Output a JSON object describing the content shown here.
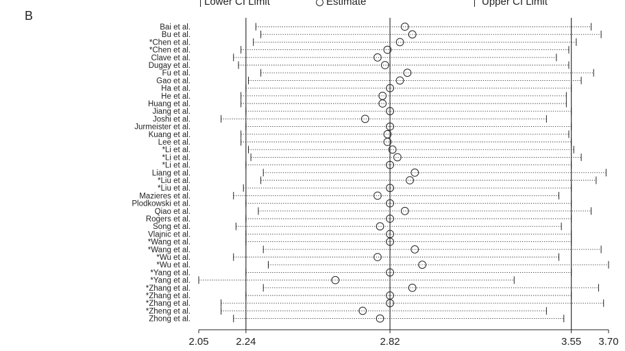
{
  "panel_letter": "B",
  "legend": {
    "lower": "Lower CI Limit",
    "estimate": "Estimate",
    "upper": "Upper CI Limit"
  },
  "colors": {
    "ink": "#222222",
    "ref_line": "#333333"
  },
  "chart_data": {
    "type": "forest",
    "x_range": [
      2.05,
      3.7
    ],
    "x_ticks": [
      2.05,
      2.24,
      2.82,
      3.55,
      3.7
    ],
    "x_tick_labels": [
      "2.05",
      "2.24",
      "2.82",
      "3.55",
      "3.70"
    ],
    "reference_lines": [
      2.24,
      2.82,
      3.55
    ],
    "studies": [
      {
        "label": "Bai et al.",
        "lower": 2.28,
        "estimate": 2.88,
        "upper": 3.63
      },
      {
        "label": "Bu et al.",
        "lower": 2.3,
        "estimate": 2.91,
        "upper": 3.67
      },
      {
        "label": "*Chen et al.",
        "lower": 2.27,
        "estimate": 2.86,
        "upper": 3.57
      },
      {
        "label": "*Chen et al.",
        "lower": 2.22,
        "estimate": 2.81,
        "upper": 3.54
      },
      {
        "label": "Clave et al.",
        "lower": 2.19,
        "estimate": 2.77,
        "upper": 3.49
      },
      {
        "label": "Dugay et al.",
        "lower": 2.21,
        "estimate": 2.8,
        "upper": 3.54
      },
      {
        "label": "Fu et al.",
        "lower": 2.3,
        "estimate": 2.89,
        "upper": 3.64
      },
      {
        "label": "Gao et al.",
        "lower": 2.25,
        "estimate": 2.86,
        "upper": 3.59
      },
      {
        "label": "Ha et al.",
        "lower": 2.24,
        "estimate": 2.82,
        "upper": 3.55
      },
      {
        "label": "He et al.",
        "lower": 2.22,
        "estimate": 2.79,
        "upper": 3.53
      },
      {
        "label": "Huang et al.",
        "lower": 2.22,
        "estimate": 2.79,
        "upper": 3.53
      },
      {
        "label": "Jiang et al.",
        "lower": 2.24,
        "estimate": 2.82,
        "upper": 3.55
      },
      {
        "label": "Joshi et al.",
        "lower": 2.14,
        "estimate": 2.72,
        "upper": 3.45
      },
      {
        "label": "Jurmeister et al.",
        "lower": 2.24,
        "estimate": 2.82,
        "upper": 3.55
      },
      {
        "label": "Kuang et al.",
        "lower": 2.22,
        "estimate": 2.81,
        "upper": 3.54
      },
      {
        "label": "Lee et al.",
        "lower": 2.22,
        "estimate": 2.81,
        "upper": 3.55
      },
      {
        "label": "*Li et al.",
        "lower": 2.25,
        "estimate": 2.83,
        "upper": 3.56
      },
      {
        "label": "*Li et al.",
        "lower": 2.26,
        "estimate": 2.85,
        "upper": 3.59
      },
      {
        "label": "*Li et al.",
        "lower": 2.24,
        "estimate": 2.82,
        "upper": 3.55
      },
      {
        "label": "Liang et al.",
        "lower": 2.31,
        "estimate": 2.92,
        "upper": 3.69
      },
      {
        "label": "*Liu et al.",
        "lower": 2.3,
        "estimate": 2.9,
        "upper": 3.65
      },
      {
        "label": "*Liu et al.",
        "lower": 2.23,
        "estimate": 2.82,
        "upper": 3.55
      },
      {
        "label": "Mazieres et al.",
        "lower": 2.19,
        "estimate": 2.77,
        "upper": 3.5
      },
      {
        "label": "Plodkowski et al.",
        "lower": 2.24,
        "estimate": 2.82,
        "upper": 3.55
      },
      {
        "label": "Qiao et al.",
        "lower": 2.29,
        "estimate": 2.88,
        "upper": 3.63
      },
      {
        "label": "Rogers et al.",
        "lower": 2.24,
        "estimate": 2.82,
        "upper": 3.55
      },
      {
        "label": "Song et al.",
        "lower": 2.2,
        "estimate": 2.78,
        "upper": 3.51
      },
      {
        "label": "Vlajnic et al.",
        "lower": 2.24,
        "estimate": 2.82,
        "upper": 3.55
      },
      {
        "label": "*Wang et al.",
        "lower": 2.24,
        "estimate": 2.82,
        "upper": 3.55
      },
      {
        "label": "*Wang et al.",
        "lower": 2.31,
        "estimate": 2.92,
        "upper": 3.67
      },
      {
        "label": "*Wu et al.",
        "lower": 2.19,
        "estimate": 2.77,
        "upper": 3.5
      },
      {
        "label": "*Wu et al.",
        "lower": 2.33,
        "estimate": 2.95,
        "upper": 3.7
      },
      {
        "label": "*Yang et al.",
        "lower": 2.24,
        "estimate": 2.82,
        "upper": 3.55
      },
      {
        "label": "*Yang et al.",
        "lower": 2.05,
        "estimate": 2.6,
        "upper": 3.32
      },
      {
        "label": "*Zhang et al.",
        "lower": 2.31,
        "estimate": 2.91,
        "upper": 3.66
      },
      {
        "label": "*Zhang et al.",
        "lower": 2.24,
        "estimate": 2.82,
        "upper": 3.55
      },
      {
        "label": "*Zhang et al.",
        "lower": 2.14,
        "estimate": 2.82,
        "upper": 3.68
      },
      {
        "label": "*Zheng et al.",
        "lower": 2.14,
        "estimate": 2.71,
        "upper": 3.45
      },
      {
        "label": "Zhong et al.",
        "lower": 2.19,
        "estimate": 2.78,
        "upper": 3.52
      }
    ]
  }
}
